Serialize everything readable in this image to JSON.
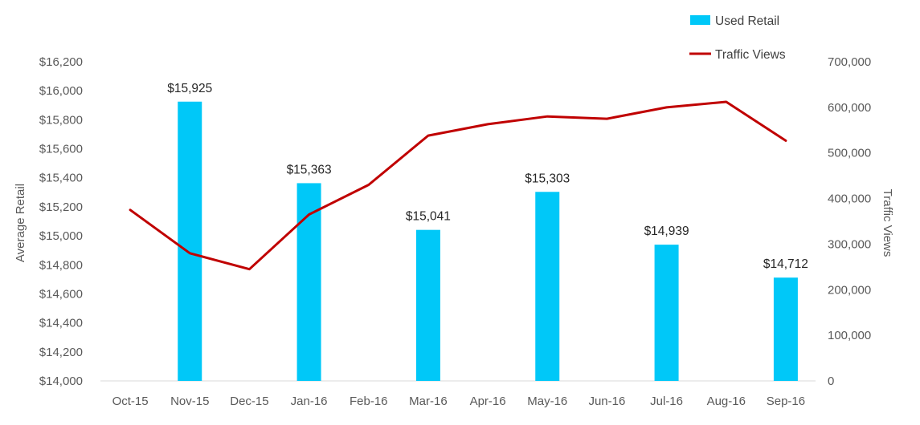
{
  "chart_data": {
    "type": "bar+line",
    "categories": [
      "Oct-15",
      "Nov-15",
      "Dec-15",
      "Jan-16",
      "Feb-16",
      "Mar-16",
      "Apr-16",
      "May-16",
      "Jun-16",
      "Jul-16",
      "Aug-16",
      "Sep-16"
    ],
    "series": [
      {
        "name": "Used Retail",
        "type": "bar",
        "axis": "left",
        "color": "#00C8F8",
        "values": [
          null,
          15925,
          null,
          15363,
          null,
          15041,
          null,
          15303,
          null,
          14939,
          null,
          14712
        ],
        "labels": [
          "",
          "$15,925",
          "",
          "$15,363",
          "",
          "$15,041",
          "",
          "$15,303",
          "",
          "$14,939",
          "",
          "$14,712"
        ]
      },
      {
        "name": "Traffic Views",
        "type": "line",
        "axis": "right",
        "color": "#C00000",
        "values": [
          375000,
          280000,
          245000,
          365000,
          430000,
          538000,
          563000,
          580000,
          575000,
          600000,
          612000,
          527000
        ]
      }
    ],
    "y_left": {
      "label": "Average Retail",
      "range": [
        14000,
        16200
      ],
      "ticks": [
        14000,
        14200,
        14400,
        14600,
        14800,
        15000,
        15200,
        15400,
        15600,
        15800,
        16000,
        16200
      ],
      "tick_labels": [
        "$14,000",
        "$14,200",
        "$14,400",
        "$14,600",
        "$14,800",
        "$15,000",
        "$15,200",
        "$15,400",
        "$15,600",
        "$15,800",
        "$16,000",
        "$16,200"
      ]
    },
    "y_right": {
      "label": "Traffic Views",
      "range": [
        0,
        700000
      ],
      "ticks": [
        0,
        100000,
        200000,
        300000,
        400000,
        500000,
        600000,
        700000
      ],
      "tick_labels": [
        "0",
        "100,000",
        "200,000",
        "300,000",
        "400,000",
        "500,000",
        "600,000",
        "700,000"
      ]
    },
    "legend_position": "top-right",
    "grid": false
  }
}
